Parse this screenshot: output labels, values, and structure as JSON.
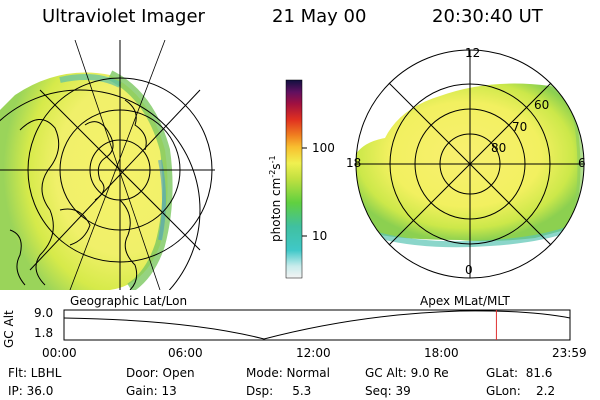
{
  "header": {
    "instrument": "Ultraviolet Imager",
    "date": "21 May 00",
    "time": "20:30:40 UT"
  },
  "colorbar": {
    "label": "photon cm",
    "label_exp1": "-2",
    "label_mid": "s",
    "label_exp2": "-1",
    "ticks": [
      "100",
      "10"
    ]
  },
  "polar_map": {
    "mlt_labels": [
      "12",
      "18",
      "6",
      "0"
    ],
    "mlat_labels": [
      "60",
      "70",
      "80"
    ]
  },
  "projections": {
    "left": "Geographic Lat/Lon",
    "right": "Apex MLat/MLT"
  },
  "altitude_plot": {
    "ylabel": "GC Alt",
    "yticks": [
      "9.0",
      "1.8"
    ],
    "xticks": [
      "00:00",
      "06:00",
      "12:00",
      "18:00",
      "23:59"
    ],
    "current_time_hours": 20.51,
    "marker_color": "#e03030"
  },
  "info": {
    "flt": "Flt: LBHL",
    "door": "Door: Open",
    "mode": "Mode: Normal",
    "gc_alt": "GC Alt: 9.0 Re",
    "glat": "GLat:  81.6",
    "ip": "IP: 36.0",
    "gain": "Gain: 13",
    "dsp": "Dsp:     5.3",
    "seq": "Seq: 39",
    "glon": "GLon:    2.2"
  }
}
